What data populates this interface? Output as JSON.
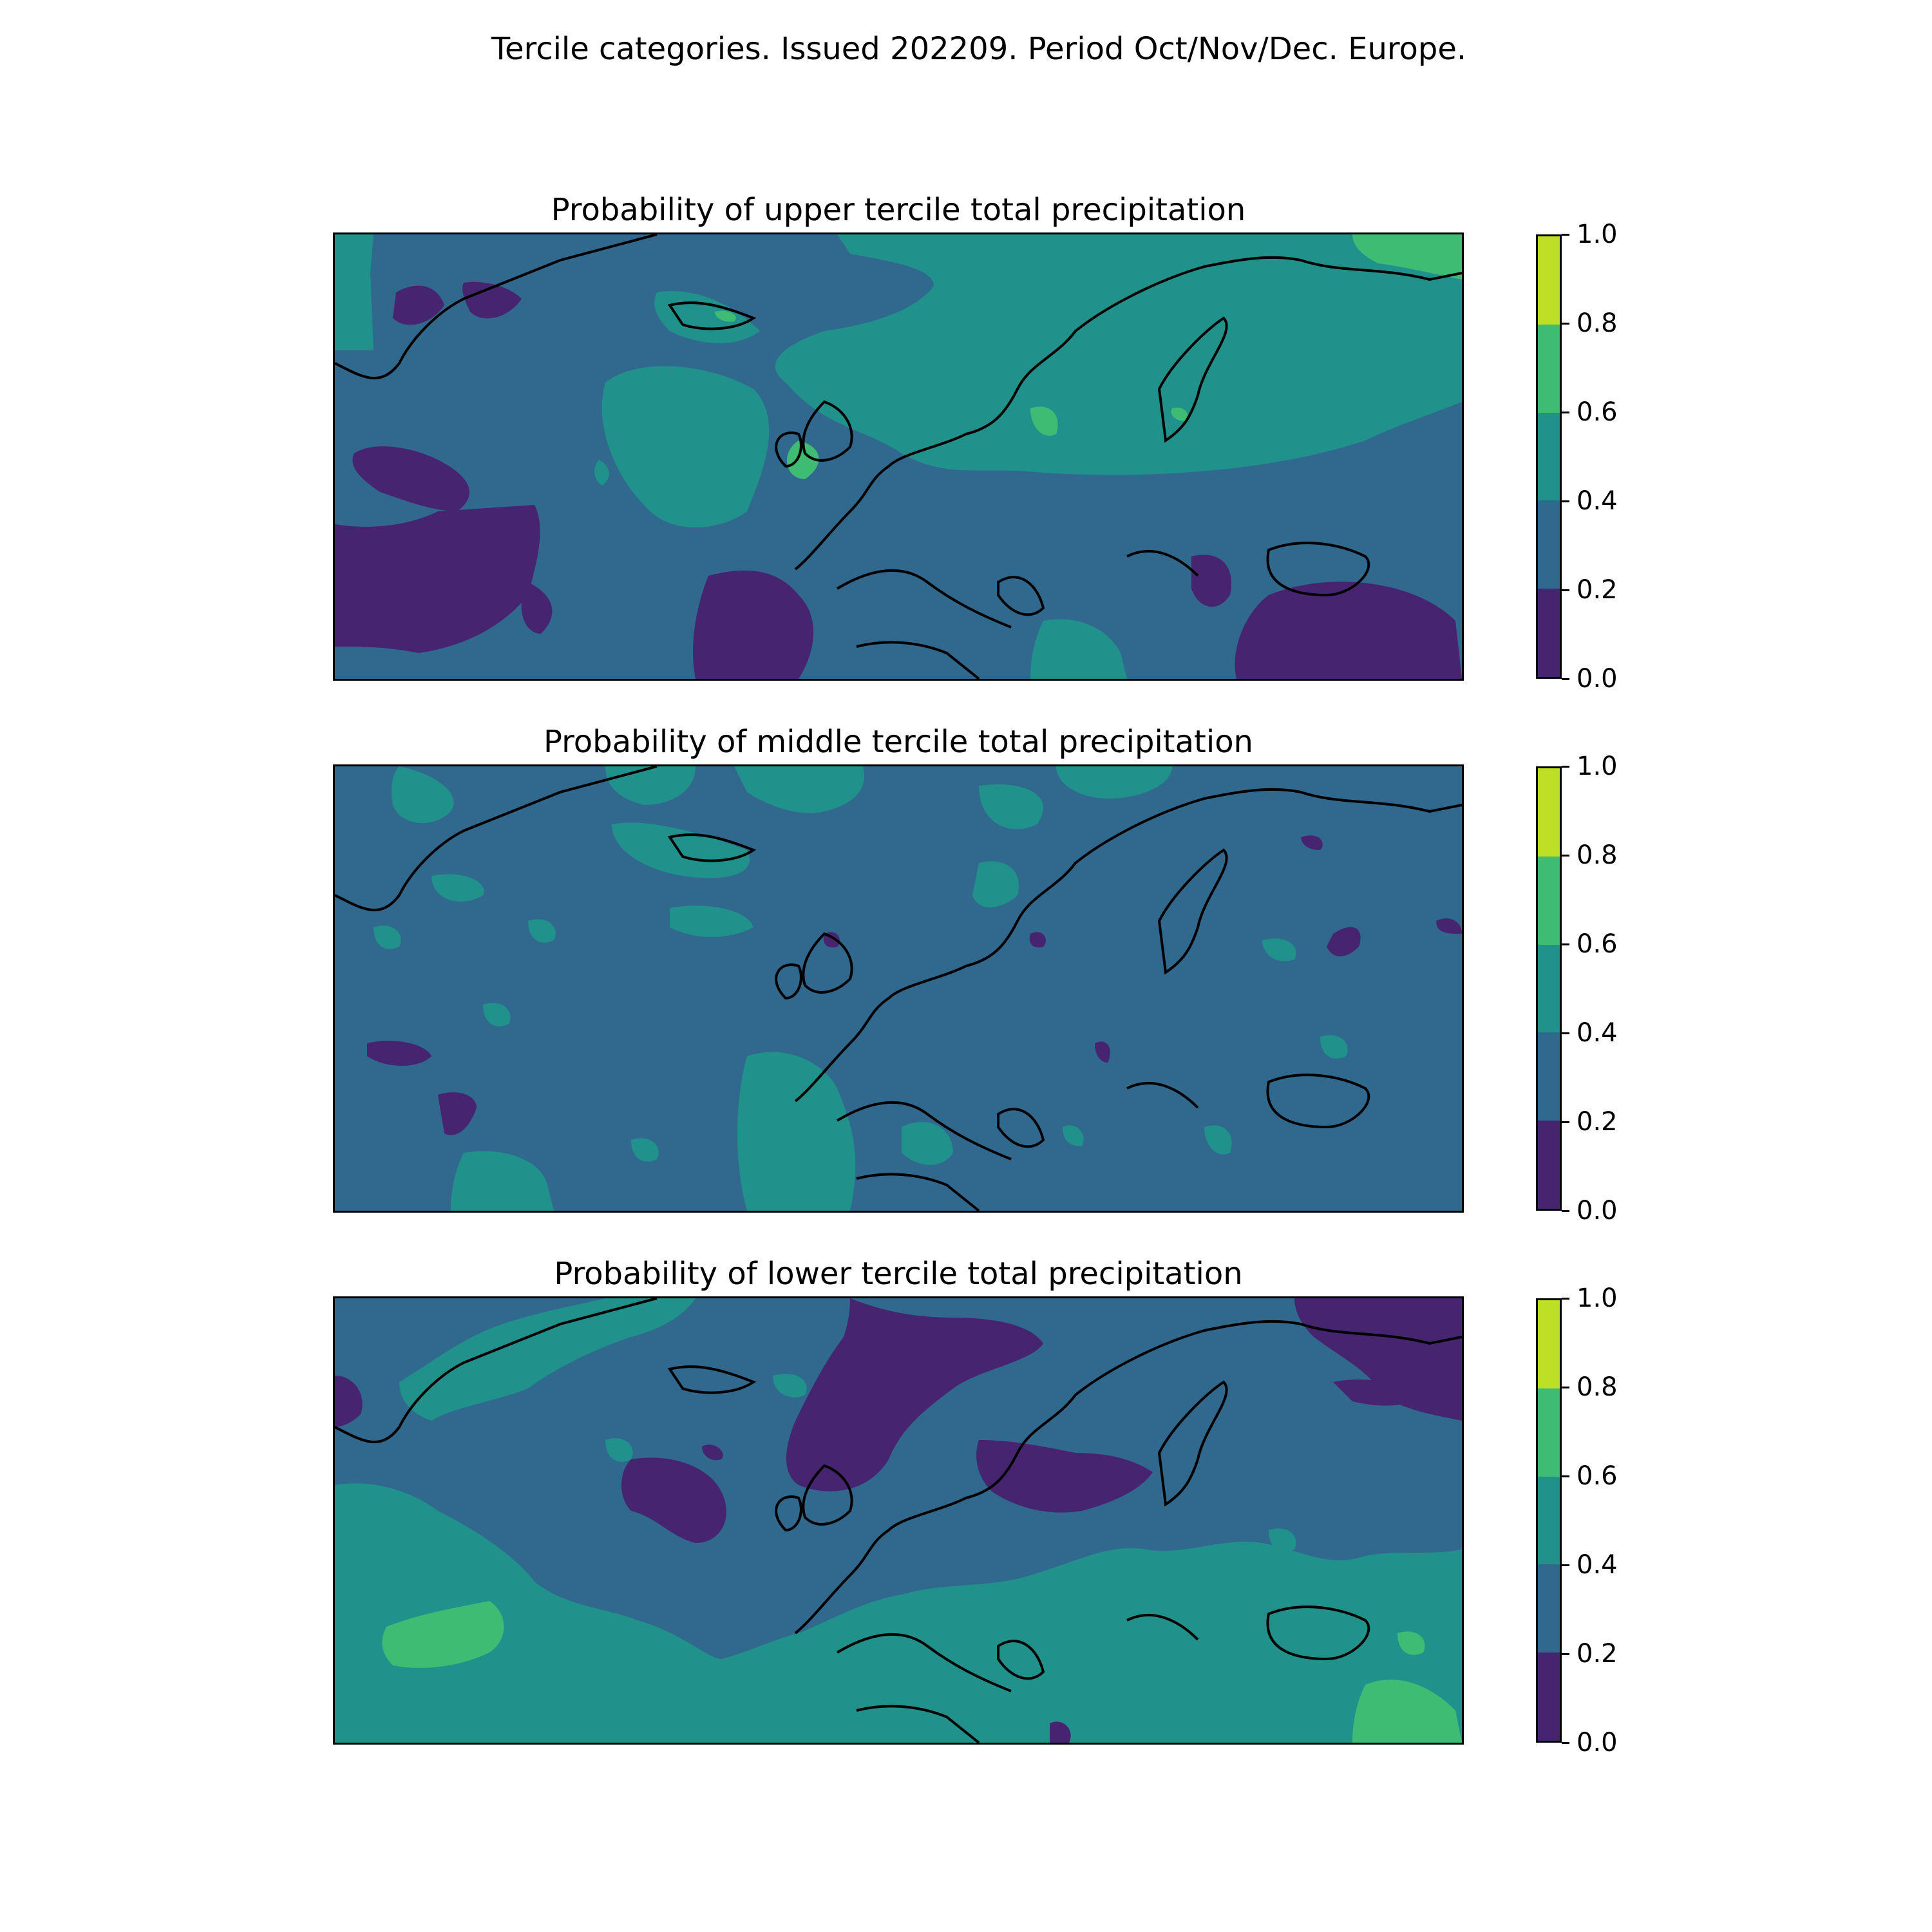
{
  "figure": {
    "suptitle": "Tercile categories. Issued 202209. Period Oct/Nov/Dec. Europe."
  },
  "colorbar": {
    "ticks": [
      "0.0",
      "0.2",
      "0.4",
      "0.6",
      "0.8",
      "1.0"
    ],
    "levels": [
      0.0,
      0.2,
      0.4,
      0.6,
      0.8,
      1.0
    ],
    "colors": [
      "#46246f",
      "#31688e",
      "#21918c",
      "#3fbc73",
      "#bddf26"
    ]
  },
  "panels": [
    {
      "id": "upper",
      "title": "Probability of upper tercile total precipitation"
    },
    {
      "id": "middle",
      "title": "Probability of middle tercile total precipitation"
    },
    {
      "id": "lower",
      "title": "Probability of lower tercile total precipitation"
    }
  ],
  "chart_data": {
    "type": "heatmap",
    "title": "Tercile categories. Issued 202209. Period Oct/Nov/Dec. Europe.",
    "region": "Europe",
    "issued": "202209",
    "period": "Oct/Nov/Dec",
    "panels": [
      "Probability of upper tercile total precipitation",
      "Probability of middle tercile total precipitation",
      "Probability of lower tercile total precipitation"
    ],
    "colorbar_range": [
      0.0,
      1.0
    ],
    "contour_levels": [
      0.0,
      0.2,
      0.4,
      0.6,
      0.8,
      1.0
    ],
    "dominant_values": {
      "upper": "0.2-0.4 over most of the domain; 0.4-0.6 over Scandinavia, Iceland region and central North Atlantic; 0.0-0.2 over the southwest Atlantic, Iberia and the Black Sea/Turkey region",
      "middle": "0.2-0.4 over most of the domain with scattered 0.4-0.6 patches and a few 0.0-0.2 spots",
      "lower": "0.2-0.4 over the north; 0.4-0.6 over southern Europe and the southern Atlantic; 0.6-0.8 near the Azores and the southeast corner; 0.0-0.2 over Scandinavia and the Baltic"
    }
  }
}
